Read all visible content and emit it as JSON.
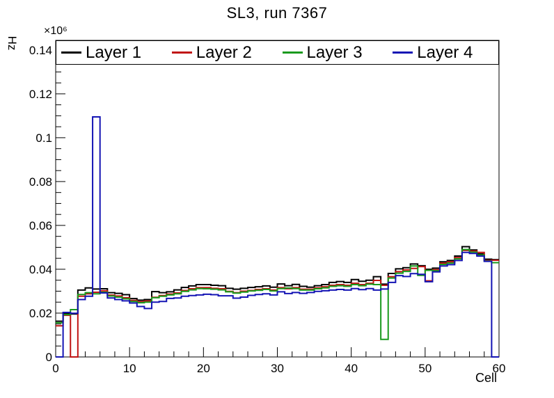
{
  "window": {
    "background": "#ffffff"
  },
  "chart_data": {
    "type": "line",
    "style": "step-histogram",
    "title": "SL3, run 7367",
    "xlabel": "Cell",
    "ylabel": "Hz",
    "y_exponent_label": "×10⁶",
    "xlim": [
      0,
      60
    ],
    "ylim": [
      0,
      0.1444
    ],
    "bin_width": 1,
    "grid": false,
    "legend_position": "top",
    "x_major_ticks": [
      0,
      10,
      20,
      30,
      40,
      50,
      60
    ],
    "x_tick_labels": [
      "0",
      "10",
      "20",
      "30",
      "40",
      "50",
      "60"
    ],
    "x_minor_step": 2,
    "y_major_ticks": [
      0,
      0.02,
      0.04,
      0.06,
      0.08,
      0.1,
      0.12,
      0.14
    ],
    "y_tick_labels": [
      "0",
      "0.02",
      "0.04",
      "0.06",
      "0.08",
      "0.1",
      "0.12",
      "0.14"
    ],
    "y_minor_step": 0.005,
    "series": [
      {
        "name": "Layer 1",
        "color": "#000000",
        "values": [
          0.0163,
          0.0198,
          0.0196,
          0.0305,
          0.0315,
          0.031,
          0.0311,
          0.0293,
          0.029,
          0.0284,
          0.0266,
          0.0259,
          0.0262,
          0.0298,
          0.0293,
          0.0297,
          0.0306,
          0.0317,
          0.0324,
          0.033,
          0.033,
          0.0327,
          0.0325,
          0.0313,
          0.0309,
          0.0313,
          0.0317,
          0.032,
          0.0324,
          0.0318,
          0.0333,
          0.0325,
          0.0331,
          0.0322,
          0.0318,
          0.0325,
          0.033,
          0.034,
          0.0344,
          0.034,
          0.0353,
          0.0345,
          0.035,
          0.0366,
          0.0332,
          0.0381,
          0.0402,
          0.0407,
          0.0424,
          0.0416,
          0.04,
          0.0405,
          0.0434,
          0.044,
          0.046,
          0.0503,
          0.0488,
          0.047,
          0.0446,
          0.0444
        ]
      },
      {
        "name": "Layer 2",
        "color": "#c01414",
        "values": [
          0.0142,
          0.019,
          0,
          0.0277,
          0.0288,
          0.0295,
          0.0302,
          0.0282,
          0.0278,
          0.027,
          0.0258,
          0.0252,
          0.0255,
          0.0272,
          0.028,
          0.0287,
          0.0292,
          0.0303,
          0.0311,
          0.0316,
          0.0316,
          0.0313,
          0.0311,
          0.0299,
          0.0293,
          0.03,
          0.0303,
          0.0308,
          0.0311,
          0.0305,
          0.0316,
          0.0311,
          0.0316,
          0.0309,
          0.0309,
          0.0315,
          0.032,
          0.0327,
          0.033,
          0.0327,
          0.0336,
          0.033,
          0.0336,
          0.0349,
          0.0327,
          0.0366,
          0.0389,
          0.0397,
          0.0404,
          0.0412,
          0.0347,
          0.0398,
          0.0428,
          0.0434,
          0.0453,
          0.0486,
          0.0483,
          0.0477,
          0.044,
          0.0441
        ]
      },
      {
        "name": "Layer 3",
        "color": "#1a9a1e",
        "values": [
          0.0156,
          0.0193,
          0.0216,
          0.0285,
          0.0293,
          0.0288,
          0.0295,
          0.0278,
          0.0273,
          0.0265,
          0.0253,
          0.0247,
          0.025,
          0.027,
          0.0277,
          0.0283,
          0.0288,
          0.0299,
          0.0306,
          0.0312,
          0.0311,
          0.0309,
          0.0306,
          0.0297,
          0.0291,
          0.0296,
          0.0301,
          0.0304,
          0.0308,
          0.0301,
          0.0312,
          0.0314,
          0.0312,
          0.0305,
          0.0305,
          0.0311,
          0.0315,
          0.0322,
          0.0325,
          0.0322,
          0.033,
          0.0325,
          0.0332,
          0.033,
          0.008,
          0.036,
          0.0382,
          0.039,
          0.0415,
          0.0372,
          0.0395,
          0.0393,
          0.0422,
          0.0428,
          0.0447,
          0.049,
          0.0478,
          0.0465,
          0.0437,
          0.043
        ]
      },
      {
        "name": "Layer 4",
        "color": "#1414b4",
        "values": [
          0,
          0.0203,
          0.0199,
          0.0262,
          0.0277,
          0.1095,
          0.0292,
          0.0269,
          0.0262,
          0.0256,
          0.0246,
          0.023,
          0.0221,
          0.025,
          0.0253,
          0.0267,
          0.0269,
          0.0277,
          0.028,
          0.0283,
          0.0286,
          0.0284,
          0.0279,
          0.0279,
          0.0268,
          0.0273,
          0.0281,
          0.0285,
          0.0288,
          0.0283,
          0.0297,
          0.0289,
          0.0294,
          0.029,
          0.0294,
          0.0299,
          0.0302,
          0.0305,
          0.0308,
          0.0305,
          0.0312,
          0.0307,
          0.0312,
          0.0305,
          0.031,
          0.034,
          0.0371,
          0.0367,
          0.038,
          0.0377,
          0.0343,
          0.0388,
          0.0415,
          0.0421,
          0.044,
          0.0477,
          0.0472,
          0.046,
          0.0436,
          0
        ]
      }
    ]
  }
}
